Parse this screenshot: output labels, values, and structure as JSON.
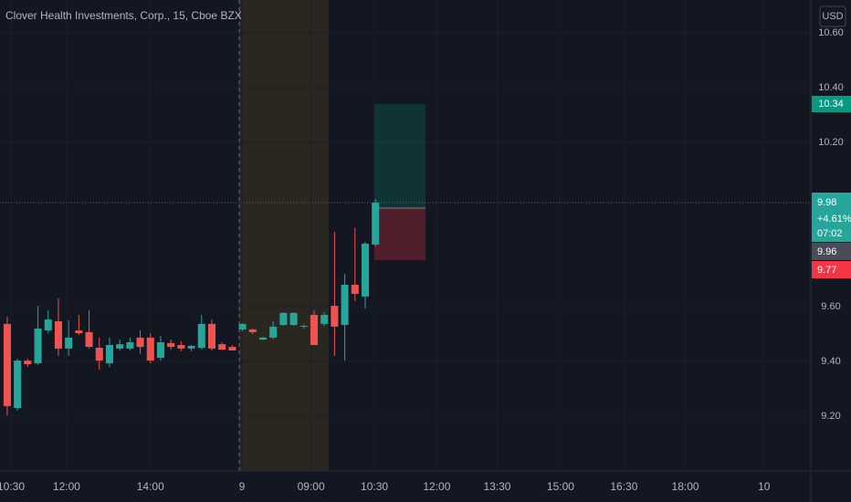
{
  "chart_data": {
    "type": "candlestick",
    "title": "Clover Health Investments, Corp., 15, Cboe BZX",
    "currency": "USD",
    "x": [
      0,
      1,
      2,
      3,
      4,
      5,
      6,
      7,
      8,
      9,
      10,
      11,
      12,
      13,
      14,
      15,
      16,
      17,
      18,
      19,
      20,
      21,
      22,
      23,
      24,
      25,
      26,
      27,
      28,
      29,
      30,
      31,
      32,
      33,
      34,
      35,
      36
    ],
    "open": [
      9.537,
      9.23,
      9.403,
      9.393,
      9.513,
      9.547,
      9.447,
      9.513,
      9.507,
      9.45,
      9.393,
      9.447,
      9.447,
      9.487,
      9.487,
      9.413,
      9.467,
      9.46,
      9.447,
      9.45,
      9.537,
      9.463,
      9.453,
      9.517,
      9.517,
      9.48,
      9.487,
      9.533,
      9.533,
      9.527,
      9.57,
      9.537,
      9.603,
      9.533,
      9.68,
      9.637,
      9.827
    ],
    "high": [
      9.563,
      9.41,
      9.41,
      9.603,
      9.587,
      9.63,
      9.55,
      9.57,
      9.587,
      9.487,
      9.487,
      9.48,
      9.487,
      9.513,
      9.503,
      9.493,
      9.48,
      9.473,
      9.46,
      9.57,
      9.553,
      9.47,
      9.46,
      9.54,
      9.52,
      9.49,
      9.547,
      9.58,
      9.58,
      9.535,
      9.587,
      9.58,
      9.873,
      9.72,
      9.887,
      9.837,
      9.993
    ],
    "low": [
      9.203,
      9.22,
      9.38,
      9.387,
      9.503,
      9.42,
      9.42,
      9.497,
      9.447,
      9.37,
      9.38,
      9.44,
      9.44,
      9.427,
      9.393,
      9.403,
      9.443,
      9.437,
      9.437,
      9.443,
      9.44,
      9.443,
      9.44,
      9.51,
      9.5,
      9.477,
      9.48,
      9.53,
      9.53,
      9.52,
      9.46,
      9.53,
      9.42,
      9.403,
      9.62,
      9.593,
      9.82
    ],
    "close": [
      9.237,
      9.403,
      9.39,
      9.52,
      9.553,
      9.447,
      9.487,
      9.503,
      9.453,
      9.403,
      9.46,
      9.463,
      9.47,
      9.453,
      9.403,
      9.47,
      9.453,
      9.447,
      9.457,
      9.537,
      9.447,
      9.443,
      9.44,
      9.537,
      9.507,
      9.487,
      9.527,
      9.577,
      9.577,
      9.53,
      9.46,
      9.57,
      9.527,
      9.68,
      9.647,
      9.83,
      9.98
    ],
    "up_color": "#26a69a",
    "down_color": "#ef5350",
    "xlim": [
      -0.71,
      78.57
    ],
    "xticks": [
      {
        "value": 0.36,
        "label": "10:30"
      },
      {
        "value": 5.8,
        "label": "12:00"
      },
      {
        "value": 14.0,
        "label": "14:00"
      },
      {
        "value": 22.95,
        "label": "9"
      },
      {
        "value": 29.7,
        "label": "09:00"
      },
      {
        "value": 35.9,
        "label": "10:30"
      },
      {
        "value": 42.0,
        "label": "12:00"
      },
      {
        "value": 47.9,
        "label": "13:30"
      },
      {
        "value": 54.1,
        "label": "15:00"
      },
      {
        "value": 60.3,
        "label": "16:30"
      },
      {
        "value": 66.3,
        "label": "18:00"
      },
      {
        "value": 74.0,
        "label": "10"
      }
    ],
    "ylim": [
      9.0,
      10.72
    ],
    "yticks": [
      {
        "value": 9.2,
        "label": "9.20"
      },
      {
        "value": 9.4,
        "label": "9.40"
      },
      {
        "value": 9.6,
        "label": "9.60"
      },
      {
        "value": 10.2,
        "label": "10.20"
      },
      {
        "value": 10.4,
        "label": "10.40"
      },
      {
        "value": 10.6,
        "label": "10.60"
      }
    ],
    "grid": true,
    "session_shade": {
      "x0": 22.68,
      "x1": 31.43,
      "color": "#2a2620"
    },
    "day_separator": 22.68,
    "position": {
      "x0": 35.9,
      "x1": 40.9,
      "entry": 9.96,
      "target": 10.34,
      "stop": 9.77
    },
    "last_price": 9.98,
    "change": {
      "value": 4.61,
      "label": "+4.61%"
    },
    "countdown": "07:02"
  }
}
